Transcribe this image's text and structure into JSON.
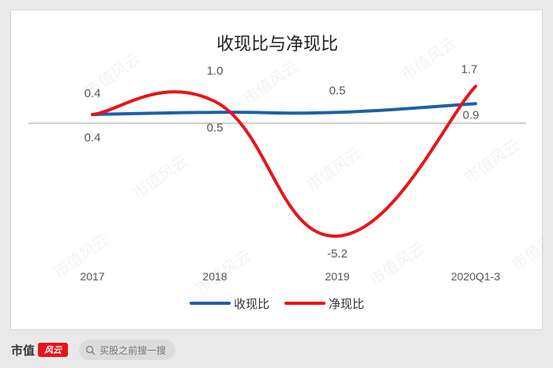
{
  "chart_data": {
    "type": "line",
    "title": "收现比与净现比",
    "categories": [
      "2017",
      "2018",
      "2019",
      "2020Q1-3"
    ],
    "series": [
      {
        "name": "收现比",
        "color": "#1f5fa8",
        "values": [
          0.4,
          0.5,
          0.5,
          0.9
        ]
      },
      {
        "name": "净现比",
        "color": "#e8141b",
        "values": [
          0.4,
          1.0,
          -5.2,
          1.7
        ]
      }
    ],
    "data_labels": [
      {
        "series": 1,
        "index": 0,
        "text": "0.4"
      },
      {
        "series": 0,
        "index": 0,
        "text": "0.4"
      },
      {
        "series": 1,
        "index": 1,
        "text": "1.0"
      },
      {
        "series": 0,
        "index": 1,
        "text": "0.5"
      },
      {
        "series": 0,
        "index": 2,
        "text": "0.5"
      },
      {
        "series": 1,
        "index": 2,
        "text": "-5.2"
      },
      {
        "series": 1,
        "index": 3,
        "text": "1.7"
      },
      {
        "series": 0,
        "index": 3,
        "text": "0.9"
      }
    ],
    "xlabel": "",
    "ylabel": "",
    "legend_position": "bottom",
    "gridlines": false,
    "watermark": "市值风云"
  },
  "footer": {
    "brand_text": "市值",
    "brand_logo_text": "风云",
    "brand_color": "#e8141b",
    "search_placeholder": "买股之前搜一搜"
  }
}
